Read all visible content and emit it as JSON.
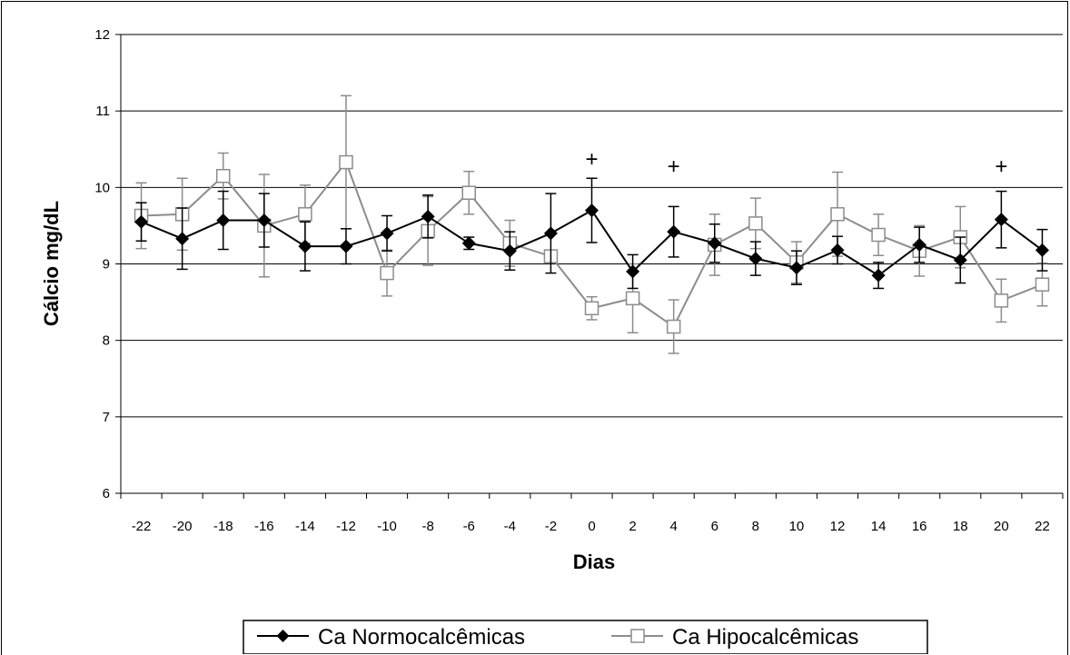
{
  "chart_data": {
    "type": "line",
    "xlabel": "Dias",
    "ylabel": "Cálcio mg/dL",
    "ylim": [
      6,
      12
    ],
    "y_ticks": [
      "6",
      "7",
      "8",
      "9",
      "10",
      "11",
      "12"
    ],
    "categories": [
      "-22",
      "-20",
      "-18",
      "-16",
      "-14",
      "-12",
      "-10",
      "-8",
      "-6",
      "-4",
      "-2",
      "0",
      "2",
      "4",
      "6",
      "8",
      "10",
      "12",
      "14",
      "16",
      "18",
      "20",
      "22"
    ],
    "grid": "horizontal",
    "legend_position": "bottom",
    "series": [
      {
        "name": "Ca Normocalcêmicas",
        "marker": "filled-diamond",
        "color": "#000000",
        "values": [
          9.55,
          9.33,
          9.57,
          9.57,
          9.23,
          9.23,
          9.4,
          9.62,
          9.27,
          9.17,
          9.4,
          9.7,
          8.9,
          9.42,
          9.27,
          9.07,
          8.95,
          9.18,
          8.85,
          9.25,
          9.05,
          9.58,
          9.18
        ],
        "errors": [
          0.25,
          0.4,
          0.38,
          0.35,
          0.32,
          0.23,
          0.23,
          0.28,
          0.08,
          0.25,
          0.52,
          0.42,
          0.22,
          0.33,
          0.25,
          0.22,
          0.22,
          0.18,
          0.17,
          0.23,
          0.3,
          0.37,
          0.27
        ]
      },
      {
        "name": "Ca Hipocalcêmicas",
        "marker": "open-square",
        "color": "#8c8c8c",
        "values": [
          9.63,
          9.65,
          10.15,
          9.5,
          9.65,
          10.33,
          8.88,
          9.43,
          9.93,
          9.27,
          9.1,
          8.42,
          8.55,
          8.18,
          9.25,
          9.53,
          9.02,
          9.65,
          9.38,
          9.17,
          9.35,
          8.52,
          8.73
        ],
        "errors": [
          0.43,
          0.47,
          0.3,
          0.67,
          0.38,
          0.87,
          0.3,
          0.45,
          0.28,
          0.3,
          0.08,
          0.15,
          0.45,
          0.35,
          0.4,
          0.33,
          0.27,
          0.55,
          0.27,
          0.33,
          0.4,
          0.28,
          0.28
        ]
      }
    ],
    "annotations": [
      {
        "text": "+",
        "x": "0",
        "y": 10.28
      },
      {
        "text": "+",
        "x": "4",
        "y": 10.18
      },
      {
        "text": "+",
        "x": "20",
        "y": 10.18
      }
    ]
  }
}
